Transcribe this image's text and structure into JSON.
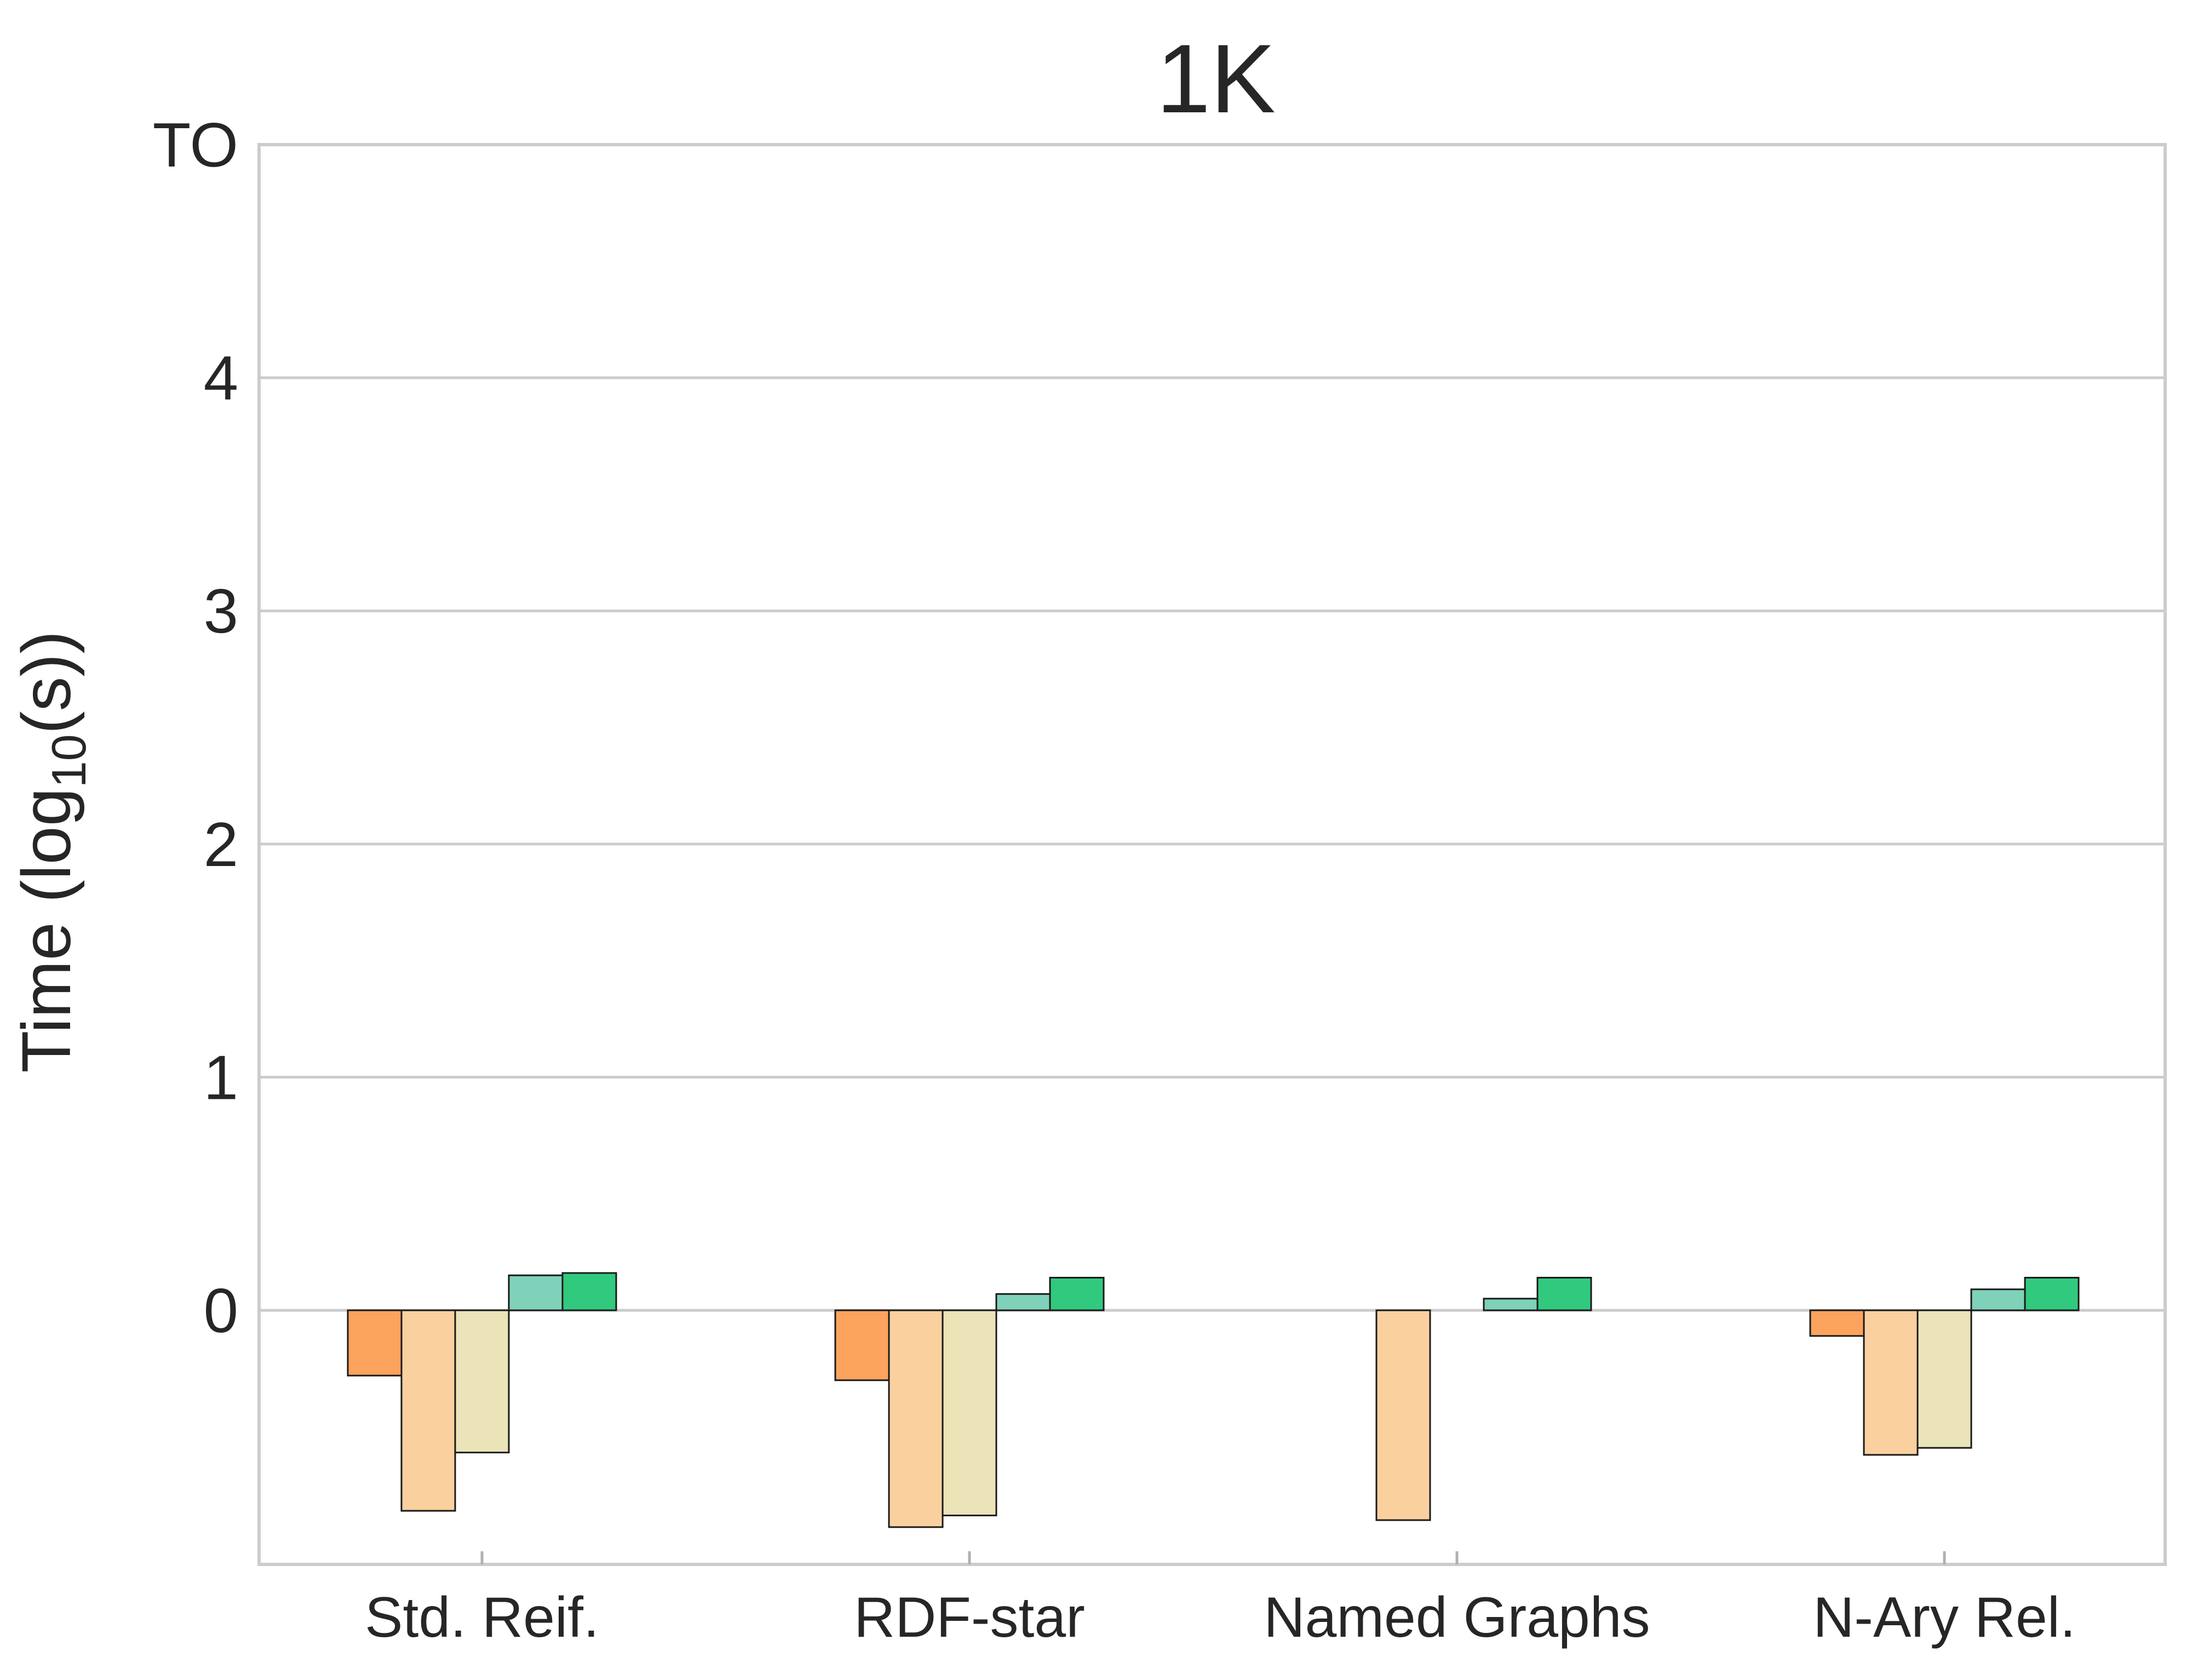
{
  "chart_data": {
    "type": "bar",
    "title": "1K",
    "ylabel": "Time (log",
    "ylabel_subscript": "10",
    "ylabel_suffix": "(s))",
    "xlabel": "",
    "categories": [
      "Std. Reif.",
      "RDF-star",
      "Named Graphs",
      "N-Ary Rel."
    ],
    "y_ticks": [
      {
        "value": 0,
        "label": "0"
      },
      {
        "value": 1,
        "label": "1"
      },
      {
        "value": 2,
        "label": "2"
      },
      {
        "value": 3,
        "label": "3"
      },
      {
        "value": 4,
        "label": "4"
      },
      {
        "value": 5,
        "label": "TO"
      }
    ],
    "ylim": [
      -1.09,
      5.0
    ],
    "grid": true,
    "legend": "none",
    "series": [
      {
        "color": "#fca35d",
        "values": [
          -0.28,
          -0.3,
          null,
          -0.11
        ]
      },
      {
        "color": "#fad09f",
        "values": [
          -0.86,
          -0.93,
          -0.9,
          -0.62
        ]
      },
      {
        "color": "#ebe4b8",
        "values": [
          -0.61,
          -0.88,
          null,
          -0.59
        ]
      },
      {
        "color": "#7fd1b9",
        "values": [
          0.15,
          0.07,
          0.05,
          0.09
        ]
      },
      {
        "color": "#31c97e",
        "values": [
          0.16,
          0.14,
          0.14,
          0.14
        ]
      }
    ]
  }
}
